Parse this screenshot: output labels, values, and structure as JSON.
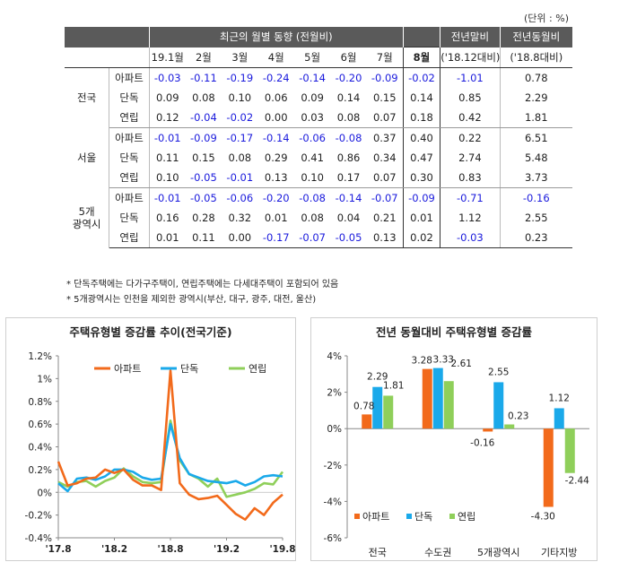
{
  "unit_label": "(단위 : %)",
  "table": {
    "group_header": "최근의 월별 동향 (전월비)",
    "col_year_end": "전년말비",
    "col_year_on_year": "전년동월비",
    "months": [
      "19.1월",
      "2월",
      "3월",
      "4월",
      "5월",
      "6월",
      "7월",
      "8월"
    ],
    "sub_year_end": "('18.12대비)",
    "sub_year_on_year": "('18.8대비)",
    "groups": [
      {
        "region": "전국",
        "rows": [
          {
            "type": "아파트",
            "values": [
              "-0.03",
              "-0.11",
              "-0.19",
              "-0.24",
              "-0.14",
              "-0.20",
              "-0.09",
              "-0.02"
            ],
            "year_end": "-1.01",
            "year_on_year": "0.78"
          },
          {
            "type": "단독",
            "values": [
              "0.09",
              "0.08",
              "0.10",
              "0.06",
              "0.09",
              "0.14",
              "0.15",
              "0.14"
            ],
            "year_end": "0.85",
            "year_on_year": "2.29"
          },
          {
            "type": "연립",
            "values": [
              "0.12",
              "-0.04",
              "-0.02",
              "0.00",
              "0.03",
              "0.08",
              "0.07",
              "0.18"
            ],
            "year_end": "0.42",
            "year_on_year": "1.81"
          }
        ]
      },
      {
        "region": "서울",
        "rows": [
          {
            "type": "아파트",
            "values": [
              "-0.01",
              "-0.09",
              "-0.17",
              "-0.14",
              "-0.06",
              "-0.08",
              "0.37",
              "0.40"
            ],
            "year_end": "0.22",
            "year_on_year": "6.51"
          },
          {
            "type": "단독",
            "values": [
              "0.11",
              "0.15",
              "0.08",
              "0.29",
              "0.41",
              "0.86",
              "0.34",
              "0.47"
            ],
            "year_end": "2.74",
            "year_on_year": "5.48"
          },
          {
            "type": "연립",
            "values": [
              "0.10",
              "-0.05",
              "-0.01",
              "0.13",
              "0.10",
              "0.17",
              "0.07",
              "0.30"
            ],
            "year_end": "0.83",
            "year_on_year": "3.73"
          }
        ]
      },
      {
        "region_line1": "5개",
        "region_line2": "광역시",
        "rows": [
          {
            "type": "아파트",
            "values": [
              "-0.01",
              "-0.05",
              "-0.06",
              "-0.20",
              "-0.08",
              "-0.14",
              "-0.07",
              "-0.09"
            ],
            "year_end": "-0.71",
            "year_on_year": "-0.16"
          },
          {
            "type": "단독",
            "values": [
              "0.16",
              "0.28",
              "0.32",
              "0.01",
              "0.08",
              "0.04",
              "0.21",
              "0.01"
            ],
            "year_end": "1.12",
            "year_on_year": "2.55"
          },
          {
            "type": "연립",
            "values": [
              "0.01",
              "0.11",
              "0.00",
              "-0.17",
              "-0.07",
              "-0.05",
              "0.13",
              "0.02"
            ],
            "year_end": "-0.03",
            "year_on_year": "0.23"
          }
        ]
      }
    ]
  },
  "notes": [
    "* 단독주택에는 다가구주택이, 연립주택에는 다세대주택이 포함되어 있음",
    "* 5개광역시는 인천을 제외한 광역시(부산, 대구, 광주, 대전, 울산)"
  ],
  "colors": {
    "apartment": "#f26a1b",
    "detached": "#1aa9ea",
    "row_house": "#8fcf5a",
    "header": "#5a5a5a",
    "negative": "#1a1adc"
  },
  "chart_data": [
    {
      "type": "line",
      "title": "주택유형별 증감률 추이(전국기준)",
      "xlabel": "",
      "ylabel": "",
      "ylim": [
        -0.4,
        1.2
      ],
      "y_ticks": [
        "-0.4%",
        "-0.2%",
        "0%",
        "0.2%",
        "0.4%",
        "0.6%",
        "0.8%",
        "1%",
        "1.2%"
      ],
      "x_ticks": [
        "'17.8",
        "'18.2",
        "'18.8",
        "'19.2",
        "'19.8"
      ],
      "x_tick_index": [
        0,
        6,
        12,
        18,
        24
      ],
      "x": [
        "'17.8",
        "'17.9",
        "'17.10",
        "'17.11",
        "'17.12",
        "'18.1",
        "'18.2",
        "'18.3",
        "'18.4",
        "'18.5",
        "'18.6",
        "'18.7",
        "'18.8",
        "'18.9",
        "'18.10",
        "'18.11",
        "'18.12",
        "'19.1",
        "'19.2",
        "'19.3",
        "'19.4",
        "'19.5",
        "'19.6",
        "'19.7",
        "'19.8"
      ],
      "legend_position": "top",
      "series": [
        {
          "name": "아파트",
          "values": [
            0.27,
            0.06,
            0.08,
            0.12,
            0.13,
            0.2,
            0.17,
            0.2,
            0.11,
            0.06,
            0.06,
            0.02,
            1.07,
            0.08,
            -0.02,
            -0.06,
            -0.05,
            -0.03,
            -0.11,
            -0.19,
            -0.24,
            -0.14,
            -0.2,
            -0.09,
            -0.02
          ]
        },
        {
          "name": "단독",
          "values": [
            0.08,
            0.01,
            0.12,
            0.13,
            0.11,
            0.14,
            0.2,
            0.2,
            0.18,
            0.13,
            0.11,
            0.12,
            0.6,
            0.3,
            0.16,
            0.13,
            0.1,
            0.09,
            0.08,
            0.1,
            0.06,
            0.09,
            0.14,
            0.15,
            0.14
          ]
        },
        {
          "name": "연립",
          "values": [
            0.09,
            0.05,
            0.09,
            0.1,
            0.05,
            0.1,
            0.13,
            0.21,
            0.14,
            0.09,
            0.08,
            0.09,
            0.63,
            0.28,
            0.16,
            0.12,
            0.05,
            0.12,
            -0.04,
            -0.02,
            0.0,
            0.03,
            0.08,
            0.07,
            0.18
          ]
        }
      ]
    },
    {
      "type": "bar",
      "title": "전년 동월대비 주택유형별 증감률",
      "xlabel": "",
      "ylabel": "",
      "ylim": [
        -6,
        4
      ],
      "y_ticks": [
        "-6%",
        "-4%",
        "-2%",
        "0%",
        "2%",
        "4%"
      ],
      "legend_position": "bottom-left",
      "categories": [
        "전국",
        "수도권",
        "5개광역시",
        "기타지방"
      ],
      "series": [
        {
          "name": "아파트",
          "values": [
            0.78,
            3.28,
            -0.16,
            -4.3
          ]
        },
        {
          "name": "단독",
          "values": [
            2.29,
            3.33,
            2.55,
            1.12
          ]
        },
        {
          "name": "연립",
          "values": [
            1.81,
            2.61,
            0.23,
            -2.44
          ]
        }
      ]
    }
  ]
}
